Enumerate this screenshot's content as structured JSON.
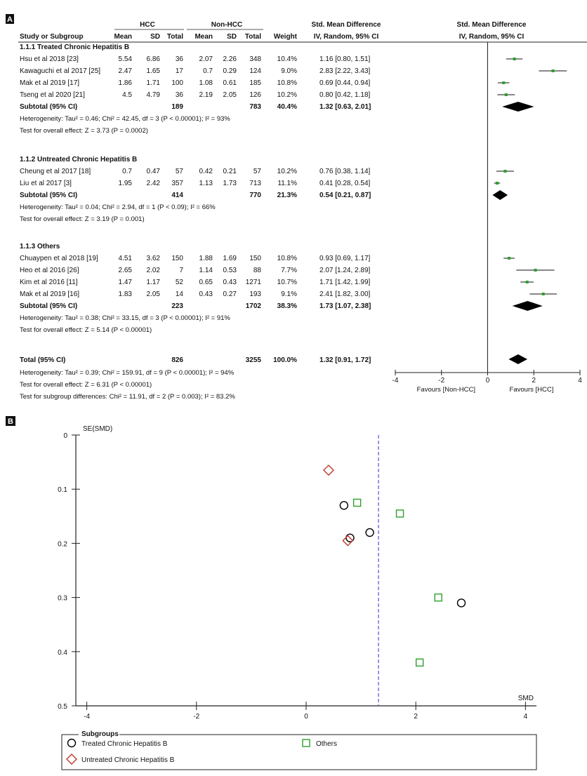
{
  "chart_data": [
    {
      "type": "table",
      "panel_label": "A",
      "header": {
        "hcc": "HCC",
        "non_hcc": "Non-HCC",
        "smd_title": "Std. Mean Difference",
        "smd_method": "IV, Random, 95% CI",
        "plot_title": "Std. Mean Difference",
        "plot_method": "IV, Random, 95% CI",
        "study": "Study or Subgroup",
        "mean1": "Mean",
        "sd1": "SD",
        "total1": "Total",
        "mean2": "Mean",
        "sd2": "SD",
        "total2": "Total",
        "weight": "Weight"
      },
      "groups": [
        {
          "title": "1.1.1 Treated Chronic Hepatitis B",
          "studies": [
            {
              "name": "Hsu et al 2018 [23]",
              "m1": "5.54",
              "sd1": "6.86",
              "n1": "36",
              "m2": "2.07",
              "sd2": "2.26",
              "n2": "348",
              "weight": "10.4%",
              "ci": "1.16 [0.80, 1.51]",
              "est": 1.16,
              "lo": 0.8,
              "hi": 1.51
            },
            {
              "name": "Kawaguchi et al 2017 [25]",
              "m1": "2.47",
              "sd1": "1.65",
              "n1": "17",
              "m2": "0.7",
              "sd2": "0.29",
              "n2": "124",
              "weight": "9.0%",
              "ci": "2.83 [2.22, 3.43]",
              "est": 2.83,
              "lo": 2.22,
              "hi": 3.43
            },
            {
              "name": "Mak et al 2019 [17]",
              "m1": "1.86",
              "sd1": "1.71",
              "n1": "100",
              "m2": "1.08",
              "sd2": "0.61",
              "n2": "185",
              "weight": "10.8%",
              "ci": "0.69 [0.44, 0.94]",
              "est": 0.69,
              "lo": 0.44,
              "hi": 0.94
            },
            {
              "name": "Tseng et al 2020 [21]",
              "m1": "4.5",
              "sd1": "4.79",
              "n1": "36",
              "m2": "2.19",
              "sd2": "2.05",
              "n2": "126",
              "weight": "10.2%",
              "ci": "0.80 [0.42, 1.18]",
              "est": 0.8,
              "lo": 0.42,
              "hi": 1.18
            }
          ],
          "subtotal": {
            "label": "Subtotal (95% CI)",
            "n1": "189",
            "n2": "783",
            "weight": "40.4%",
            "ci": "1.32 [0.63, 2.01]",
            "est": 1.32,
            "lo": 0.63,
            "hi": 2.01
          },
          "heterogeneity": "Heterogeneity: Tau² = 0.46; Chi² = 42.45, df = 3 (P < 0.00001); I² = 93%",
          "overall": "Test for overall effect: Z = 3.73 (P = 0.0002)"
        },
        {
          "title": "1.1.2 Untreated Chronic Hepatitis B",
          "studies": [
            {
              "name": "Cheung et al 2017 [18]",
              "m1": "0.7",
              "sd1": "0.47",
              "n1": "57",
              "m2": "0.42",
              "sd2": "0.21",
              "n2": "57",
              "weight": "10.2%",
              "ci": "0.76 [0.38, 1.14]",
              "est": 0.76,
              "lo": 0.38,
              "hi": 1.14
            },
            {
              "name": "Liu et al 2017 [3]",
              "m1": "1.95",
              "sd1": "2.42",
              "n1": "357",
              "m2": "1.13",
              "sd2": "1.73",
              "n2": "713",
              "weight": "11.1%",
              "ci": "0.41 [0.28, 0.54]",
              "est": 0.41,
              "lo": 0.28,
              "hi": 0.54
            }
          ],
          "subtotal": {
            "label": "Subtotal (95% CI)",
            "n1": "414",
            "n2": "770",
            "weight": "21.3%",
            "ci": "0.54 [0.21, 0.87]",
            "est": 0.54,
            "lo": 0.21,
            "hi": 0.87
          },
          "heterogeneity": "Heterogeneity: Tau² = 0.04; Chi² = 2.94, df = 1 (P < 0.09); I² = 66%",
          "overall": "Test for overall effect: Z = 3.19 (P = 0.001)"
        },
        {
          "title": "1.1.3 Others",
          "studies": [
            {
              "name": "Chuaypen et al 2018 [19]",
              "m1": "4.51",
              "sd1": "3.62",
              "n1": "150",
              "m2": "1.88",
              "sd2": "1.69",
              "n2": "150",
              "weight": "10.8%",
              "ci": "0.93 [0.69, 1.17]",
              "est": 0.93,
              "lo": 0.69,
              "hi": 1.17
            },
            {
              "name": "Heo et al 2016 [26]",
              "m1": "2.65",
              "sd1": "2.02",
              "n1": "7",
              "m2": "1.14",
              "sd2": "0.53",
              "n2": "88",
              "weight": "7.7%",
              "ci": "2.07 [1.24, 2.89]",
              "est": 2.07,
              "lo": 1.24,
              "hi": 2.89
            },
            {
              "name": "Kim et al 2016 [11]",
              "m1": "1.47",
              "sd1": "1.17",
              "n1": "52",
              "m2": "0.65",
              "sd2": "0.43",
              "n2": "1271",
              "weight": "10.7%",
              "ci": "1.71 [1.42, 1.99]",
              "est": 1.71,
              "lo": 1.42,
              "hi": 1.99
            },
            {
              "name": "Mak et al 2019 [16]",
              "m1": "1.83",
              "sd1": "2.05",
              "n1": "14",
              "m2": "0.43",
              "sd2": "0.27",
              "n2": "193",
              "weight": "9.1%",
              "ci": "2.41 [1.82, 3.00]",
              "est": 2.41,
              "lo": 1.82,
              "hi": 3.0
            }
          ],
          "subtotal": {
            "label": "Subtotal (95% CI)",
            "n1": "223",
            "n2": "1702",
            "weight": "38.3%",
            "ci": "1.73 [1.07, 2.38]",
            "est": 1.73,
            "lo": 1.07,
            "hi": 2.38
          },
          "heterogeneity": "Heterogeneity: Tau² = 0.38; Chi² = 33.15, df = 3 (P < 0.00001); I² = 91%",
          "overall": "Test for overall effect: Z = 5.14 (P < 0.00001)"
        }
      ],
      "total": {
        "label": "Total (95% CI)",
        "n1": "826",
        "n2": "3255",
        "weight": "100.0%",
        "ci": "1.32 [0.91, 1.72]",
        "est": 1.32,
        "lo": 0.91,
        "hi": 1.72
      },
      "footer": [
        "Heterogeneity: Tau² = 0.39; Chi² = 159.91, df = 9 (P < 0.00001); I² = 94%",
        "Test for overall effect: Z = 6.31 (P < 0.00001)",
        "Test for subgroup differences: Chi² = 11.91, df = 2 (P = 0.003); I² = 83.2%"
      ],
      "x_ticks": [
        "-4",
        "-2",
        "0",
        "2",
        "4"
      ],
      "xlim": [
        -4,
        4
      ],
      "favours_left": "Favours [Non-HCC]",
      "favours_right": "Favours [HCC]",
      "colors": {
        "square": "#2ca02c",
        "diamond": "#000000"
      }
    },
    {
      "type": "scatter",
      "panel_label": "B",
      "ylabel": "SE(SMD)",
      "xlabel": "SMD",
      "xlim": [
        -4.2,
        4.2
      ],
      "ylim": [
        0,
        0.5
      ],
      "x_ticks": [
        "-4",
        "-2",
        "0",
        "2",
        "4"
      ],
      "y_ticks": [
        "0",
        "0.1",
        "0.2",
        "0.3",
        "0.4",
        "0.5"
      ],
      "reference_line_x": 1.32,
      "series": [
        {
          "name": "Treated Chronic Hepatitis B",
          "marker": "circle",
          "color": "#000000",
          "points": [
            [
              0.69,
              0.13
            ],
            [
              0.8,
              0.19
            ],
            [
              1.16,
              0.18
            ],
            [
              2.83,
              0.31
            ]
          ]
        },
        {
          "name": "Untreated Chronic Hepatitis B",
          "marker": "diamond",
          "color": "#c0392b",
          "points": [
            [
              0.41,
              0.065
            ],
            [
              0.76,
              0.195
            ]
          ]
        },
        {
          "name": "Others",
          "marker": "square",
          "color": "#2ca02c",
          "points": [
            [
              0.93,
              0.125
            ],
            [
              1.71,
              0.145
            ],
            [
              2.41,
              0.3
            ],
            [
              2.07,
              0.42
            ]
          ]
        }
      ],
      "legend_title": "Subgroups",
      "legend_placement": "bottom"
    }
  ]
}
